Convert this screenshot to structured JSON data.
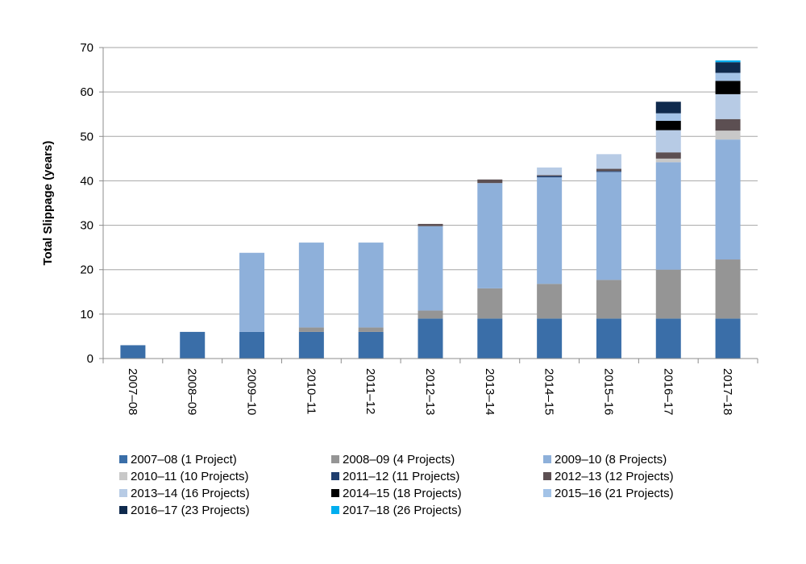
{
  "chart_data": {
    "type": "bar",
    "stacked": true,
    "title": "",
    "xlabel": "",
    "ylabel": "Total Slippage (years)",
    "ylim": [
      0,
      70
    ],
    "yticks": [
      0,
      10,
      20,
      30,
      40,
      50,
      60,
      70
    ],
    "grid": true,
    "legend_position": "bottom",
    "categories": [
      "2007–08",
      "2008–09",
      "2009–10",
      "2010–11",
      "2011–12",
      "2012–13",
      "2013–14",
      "2014–15",
      "2015–16",
      "2016–17",
      "2017–18"
    ],
    "series": [
      {
        "name": "2007–08 (1 Project)",
        "color": "#3A6EA8",
        "values": [
          3,
          6,
          6,
          6,
          6,
          9,
          9,
          9,
          9,
          9,
          9
        ]
      },
      {
        "name": "2008–09 (4 Projects)",
        "color": "#959595",
        "values": [
          0,
          0,
          0,
          1,
          1,
          1.8,
          6.8,
          7.8,
          8.7,
          11,
          13.3
        ]
      },
      {
        "name": "2009–10 (8 Projects)",
        "color": "#8EB0DA",
        "values": [
          0,
          0,
          17.8,
          19.1,
          19.1,
          19,
          23.7,
          24,
          24.3,
          24.2,
          27
        ]
      },
      {
        "name": "2010–11 (10 Projects)",
        "color": "#C8C8C8",
        "values": [
          0,
          0,
          0,
          0,
          0,
          0,
          0,
          0,
          0,
          0.8,
          2
        ]
      },
      {
        "name": "2011–12 (11 Projects)",
        "color": "#1F3E6E",
        "values": [
          0,
          0,
          0,
          0,
          0,
          0,
          0,
          0.3,
          0.2,
          0,
          0
        ]
      },
      {
        "name": "2012–13 (12 Projects)",
        "color": "#5C4F52",
        "values": [
          0,
          0,
          0,
          0,
          0,
          0.5,
          0.8,
          0.2,
          0.5,
          1.4,
          2.6
        ]
      },
      {
        "name": "2013–14 (16 Projects)",
        "color": "#B7CBE5",
        "values": [
          0,
          0,
          0,
          0,
          0,
          0,
          0,
          1.7,
          3.3,
          5,
          5.6
        ]
      },
      {
        "name": "2014–15 (18 Projects)",
        "color": "#000000",
        "values": [
          0,
          0,
          0,
          0,
          0,
          0,
          0,
          0,
          0,
          2.1,
          3
        ]
      },
      {
        "name": "2015–16 (21 Projects)",
        "color": "#A3C3E7",
        "values": [
          0,
          0,
          0,
          0,
          0,
          0,
          0,
          0,
          0,
          1.7,
          1.8
        ]
      },
      {
        "name": "2016–17 (23 Projects)",
        "color": "#0F2A4D",
        "values": [
          0,
          0,
          0,
          0,
          0,
          0,
          0,
          0,
          0,
          2.6,
          2.4
        ]
      },
      {
        "name": "2017–18 (26 Projects)",
        "color": "#00AEEF",
        "values": [
          0,
          0,
          0,
          0,
          0,
          0,
          0,
          0,
          0,
          0,
          0.4
        ]
      }
    ]
  }
}
